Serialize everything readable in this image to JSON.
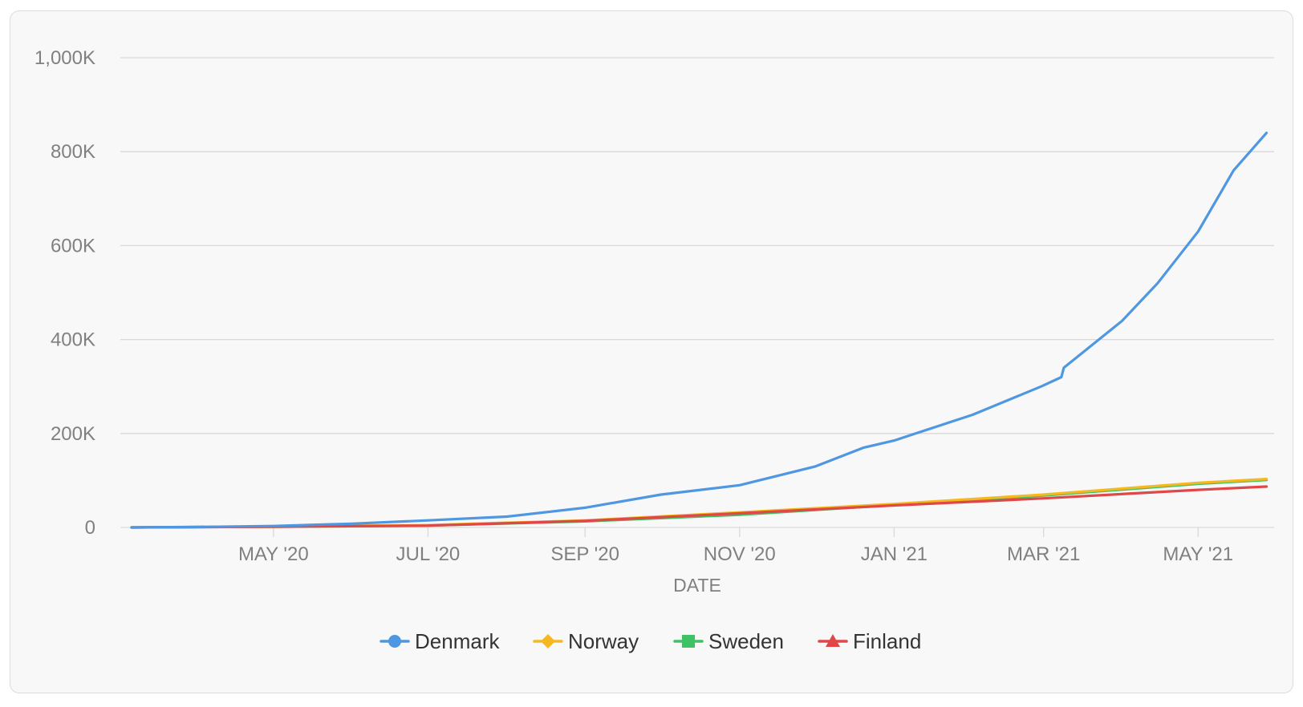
{
  "chart_data": {
    "type": "line",
    "xlabel": "DATE",
    "ylabel": "",
    "x_range": [
      "2020-03-06",
      "2021-05-31"
    ],
    "ylim": [
      0,
      1000000
    ],
    "y_ticks": [
      0,
      200000,
      400000,
      600000,
      800000,
      1000000
    ],
    "y_tick_labels": [
      "0",
      "200K",
      "400K",
      "600K",
      "800K",
      "1,000K"
    ],
    "x_ticks": [
      "2020-05-01",
      "2020-07-01",
      "2020-09-01",
      "2020-11-01",
      "2021-01-01",
      "2021-03-01",
      "2021-05-01"
    ],
    "x_tick_labels": [
      "MAY '20",
      "JUL '20",
      "SEP '20",
      "NOV '20",
      "JAN '21",
      "MAR '21",
      "MAY '21"
    ],
    "grid": true,
    "legend_position": "bottom",
    "series": [
      {
        "name": "Denmark",
        "color": "#4f97e0",
        "marker": "circle",
        "points": [
          [
            "2020-03-06",
            0
          ],
          [
            "2020-04-01",
            1000
          ],
          [
            "2020-05-01",
            3000
          ],
          [
            "2020-06-01",
            8000
          ],
          [
            "2020-07-01",
            15000
          ],
          [
            "2020-08-01",
            23000
          ],
          [
            "2020-09-01",
            42000
          ],
          [
            "2020-10-01",
            70000
          ],
          [
            "2020-11-01",
            90000
          ],
          [
            "2020-12-01",
            130000
          ],
          [
            "2020-12-20",
            170000
          ],
          [
            "2021-01-01",
            185000
          ],
          [
            "2021-02-01",
            240000
          ],
          [
            "2021-02-28",
            300000
          ],
          [
            "2021-03-08",
            320000
          ],
          [
            "2021-03-09",
            340000
          ],
          [
            "2021-04-01",
            440000
          ],
          [
            "2021-04-15",
            520000
          ],
          [
            "2021-05-01",
            630000
          ],
          [
            "2021-05-15",
            760000
          ],
          [
            "2021-05-28",
            840000
          ]
        ]
      },
      {
        "name": "Norway",
        "color": "#f5b820",
        "marker": "diamond",
        "points": [
          [
            "2020-03-06",
            0
          ],
          [
            "2020-05-01",
            2000
          ],
          [
            "2020-07-01",
            5000
          ],
          [
            "2020-09-01",
            15000
          ],
          [
            "2020-11-01",
            32000
          ],
          [
            "2021-01-01",
            50000
          ],
          [
            "2021-03-01",
            70000
          ],
          [
            "2021-05-01",
            95000
          ],
          [
            "2021-05-28",
            103000
          ]
        ]
      },
      {
        "name": "Sweden",
        "color": "#3fc263",
        "marker": "square",
        "points": [
          [
            "2020-03-06",
            0
          ],
          [
            "2020-05-01",
            1500
          ],
          [
            "2020-07-01",
            4000
          ],
          [
            "2020-09-01",
            13000
          ],
          [
            "2020-11-01",
            27000
          ],
          [
            "2021-01-01",
            48000
          ],
          [
            "2021-03-01",
            68000
          ],
          [
            "2021-05-01",
            93000
          ],
          [
            "2021-05-28",
            101000
          ]
        ]
      },
      {
        "name": "Finland",
        "color": "#e04848",
        "marker": "triangle",
        "points": [
          [
            "2020-03-06",
            0
          ],
          [
            "2020-05-01",
            1500
          ],
          [
            "2020-07-01",
            4000
          ],
          [
            "2020-09-01",
            14000
          ],
          [
            "2020-11-01",
            30000
          ],
          [
            "2021-01-01",
            47000
          ],
          [
            "2021-03-01",
            62000
          ],
          [
            "2021-05-01",
            80000
          ],
          [
            "2021-05-28",
            87000
          ]
        ]
      }
    ]
  }
}
